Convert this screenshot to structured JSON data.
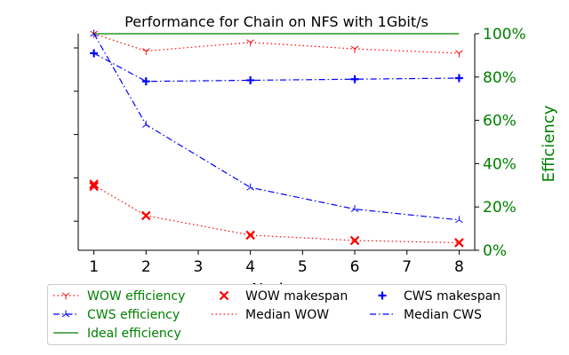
{
  "chart_data": {
    "type": "line",
    "title": "Performance for Chain on NFS with 1Gbit/s",
    "xlabel": "Nodes",
    "ylabel_right": "Efficiency",
    "x": [
      1,
      2,
      4,
      6,
      8
    ],
    "x_ticks": [
      1,
      2,
      3,
      4,
      5,
      6,
      7,
      8
    ],
    "xlim": [
      0.7,
      8.3
    ],
    "left_ylim": [
      0,
      1
    ],
    "right_ylim": [
      0,
      100
    ],
    "right_ticks": [
      "0%",
      "20%",
      "40%",
      "60%",
      "80%",
      "100%"
    ],
    "grid": false,
    "legend_position": "bottom",
    "series": [
      {
        "name": "WOW efficiency",
        "axis": "right",
        "values": [
          100,
          92,
          96,
          93,
          91
        ],
        "color": "#ff0000",
        "style": "dotted",
        "marker": "tri_down"
      },
      {
        "name": "CWS efficiency",
        "axis": "right",
        "values": [
          100,
          58,
          29,
          19,
          14
        ],
        "color": "#0000ff",
        "style": "dashdot",
        "marker": "tri_up"
      },
      {
        "name": "Ideal efficiency",
        "axis": "right",
        "values": [
          100,
          100,
          100,
          100,
          100
        ],
        "color": "#008000",
        "style": "solid",
        "marker": "none"
      },
      {
        "name": "WOW makespan",
        "axis": "left",
        "points": [
          [
            1,
            0.305
          ],
          [
            1,
            0.295
          ],
          [
            2,
            0.16
          ],
          [
            4,
            0.07
          ],
          [
            6,
            0.045
          ],
          [
            8,
            0.035
          ]
        ],
        "color": "#ff0000",
        "marker": "x"
      },
      {
        "name": "Median WOW",
        "axis": "left",
        "values": [
          0.3,
          0.16,
          0.07,
          0.045,
          0.035
        ],
        "color": "#ff0000",
        "style": "dotted",
        "marker": "none"
      },
      {
        "name": "CWS makespan",
        "axis": "left",
        "points": [
          [
            1,
            0.91
          ],
          [
            2,
            0.78
          ],
          [
            4,
            0.785
          ],
          [
            6,
            0.79
          ],
          [
            8,
            0.795
          ]
        ],
        "color": "#0000ff",
        "marker": "plus"
      },
      {
        "name": "Median CWS",
        "axis": "left",
        "values": [
          0.91,
          0.78,
          0.785,
          0.79,
          0.795
        ],
        "color": "#0000ff",
        "style": "dashdot",
        "marker": "none"
      }
    ],
    "legend": [
      {
        "label": "WOW efficiency",
        "color": "#008000",
        "line_color": "#ff0000",
        "style": "dotted",
        "marker": "tri_down"
      },
      {
        "label": "WOW makespan",
        "color": "#000000",
        "line_color": "#ff0000",
        "style": "none",
        "marker": "x"
      },
      {
        "label": "CWS makespan",
        "color": "#000000",
        "line_color": "#0000ff",
        "style": "none",
        "marker": "plus"
      },
      {
        "label": "CWS efficiency",
        "color": "#008000",
        "line_color": "#0000ff",
        "style": "dashdot",
        "marker": "tri_up"
      },
      {
        "label": "Median WOW",
        "color": "#000000",
        "line_color": "#ff0000",
        "style": "dotted",
        "marker": "none"
      },
      {
        "label": "Median CWS",
        "color": "#000000",
        "line_color": "#0000ff",
        "style": "dashdot",
        "marker": "none"
      },
      {
        "label": "Ideal efficiency",
        "color": "#008000",
        "line_color": "#008000",
        "style": "solid",
        "marker": "none"
      }
    ]
  }
}
